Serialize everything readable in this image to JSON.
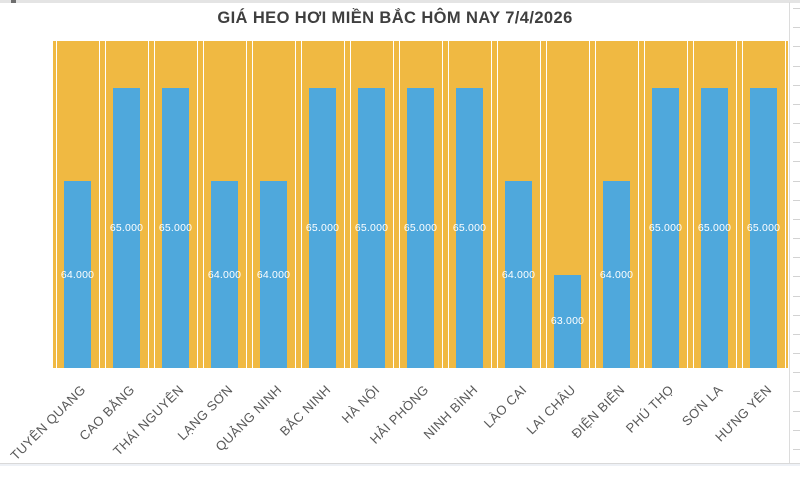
{
  "chart_data": {
    "type": "bar",
    "title": "GIÁ HEO HƠI MIỀN BẮC HÔM NAY 7/4/2026",
    "categories": [
      "TUYÊN QUANG",
      "CAO BẰNG",
      "THÁI NGUYÊN",
      "LẠNG SƠN",
      "QUẢNG NINH",
      "BẮC NINH",
      "HÀ NỘI",
      "HẢI PHÒNG",
      "NINH BÌNH",
      "LÀO CAI",
      "LAI CHÂU",
      "ĐIỆN BIÊN",
      "PHÚ THỌ",
      "SƠN LA",
      "HƯNG YÊN"
    ],
    "values": [
      64000,
      65000,
      65000,
      64000,
      64000,
      65000,
      65000,
      65000,
      65000,
      64000,
      63000,
      64000,
      65000,
      65000,
      65000
    ],
    "value_labels": [
      "64.000",
      "65.000",
      "65.000",
      "64.000",
      "64.000",
      "65.000",
      "65.000",
      "65.000",
      "65.000",
      "64.000",
      "63.000",
      "64.000",
      "65.000",
      "65.000",
      "65.000"
    ],
    "xlabel": "",
    "ylabel": "",
    "ylim": [
      62000,
      65500
    ],
    "grid": false,
    "legend": null,
    "data_labels_position": "center-inside",
    "colors": {
      "bar": "#4FA8DC",
      "plot_background": "#F0B942",
      "column_divider": "#FFFFFF",
      "value_label": "#FFFFFF",
      "category_label": "#595959",
      "title": "#3F3F3F"
    }
  }
}
